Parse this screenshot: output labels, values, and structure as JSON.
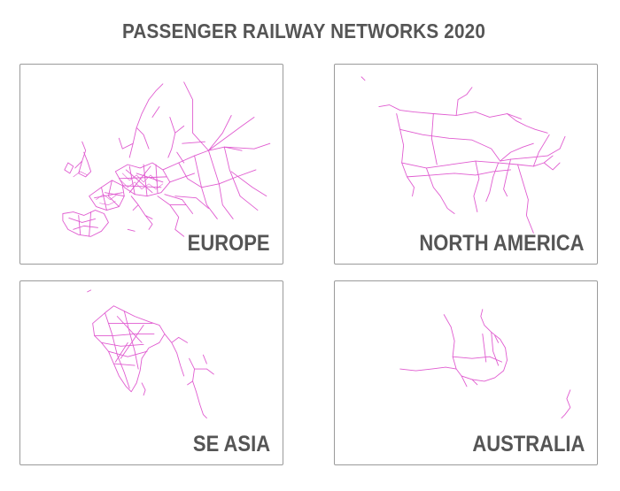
{
  "title": "PASSENGER RAILWAY NETWORKS 2020",
  "rail_color": "#e05bd0",
  "panels": {
    "europe": {
      "label": "EUROPE"
    },
    "north_america": {
      "label": "NORTH AMERICA"
    },
    "se_asia": {
      "label": "SE ASIA"
    },
    "australia": {
      "label": "AUSTRALIA"
    }
  }
}
